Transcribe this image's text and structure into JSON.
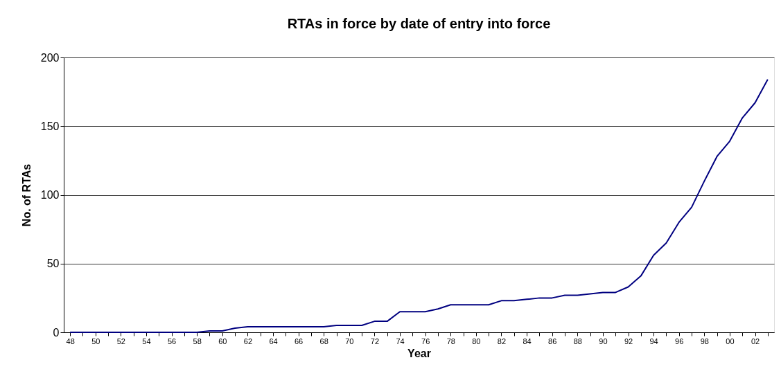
{
  "chart_data": {
    "type": "line",
    "title": "RTAs in force by date of entry into force",
    "xlabel": "Year",
    "ylabel": "No. of RTAs",
    "categories": [
      "48",
      null,
      "50",
      null,
      "52",
      null,
      "54",
      null,
      "56",
      null,
      "58",
      null,
      "60",
      null,
      "62",
      null,
      "64",
      null,
      "66",
      null,
      "68",
      null,
      "70",
      null,
      "72",
      null,
      "74",
      null,
      "76",
      null,
      "78",
      null,
      "80",
      null,
      "82",
      null,
      "84",
      null,
      "86",
      null,
      "88",
      null,
      "90",
      null,
      "92",
      null,
      "94",
      null,
      "96",
      null,
      "98",
      null,
      "00",
      null,
      "02",
      null
    ],
    "series": [
      {
        "color": "#000080",
        "values": [
          0,
          0,
          0,
          0,
          0,
          0,
          0,
          0,
          0,
          0,
          0,
          1,
          1,
          3,
          4,
          4,
          4,
          4,
          4,
          4,
          4,
          5,
          5,
          5,
          8,
          8,
          15,
          15,
          15,
          17,
          20,
          20,
          20,
          20,
          23,
          23,
          24,
          25,
          25,
          27,
          27,
          28,
          29,
          29,
          33,
          41,
          56,
          65,
          80,
          91,
          110,
          128,
          139,
          156,
          167,
          184
        ]
      }
    ],
    "ylim": [
      0,
      200
    ],
    "yticks": [
      0,
      50,
      100,
      150,
      200
    ],
    "grid": "y",
    "legend": false,
    "marker": "none",
    "line_style": "solid"
  }
}
